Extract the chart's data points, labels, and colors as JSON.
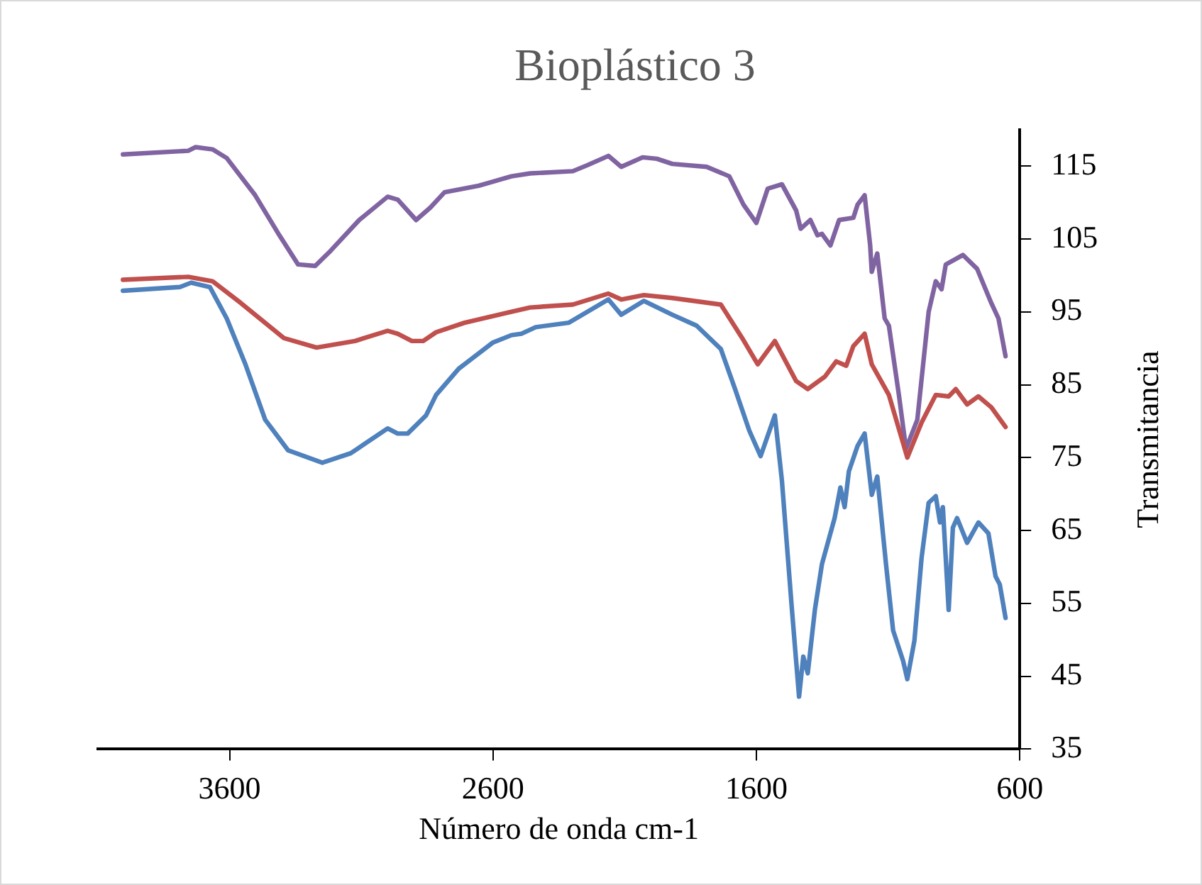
{
  "chart_data": {
    "type": "line",
    "title": "Bioplástico 3",
    "xlabel": "Número de onda cm-1",
    "ylabel": "Transmitancia",
    "xlim": [
      4100,
      600
    ],
    "xticks": [
      3600,
      2600,
      1600,
      600
    ],
    "ylim": [
      35,
      120
    ],
    "yticks": [
      35,
      45,
      55,
      65,
      75,
      85,
      95,
      105,
      115
    ],
    "grid": false,
    "legend": false,
    "marker": "none",
    "line_style": "solid",
    "series": [
      {
        "color": "#4f81bd",
        "x": [
          4005,
          3789,
          3746,
          3675,
          3611,
          3540,
          3465,
          3378,
          3248,
          3140,
          3000,
          2962,
          2924,
          2854,
          2816,
          2730,
          2600,
          2530,
          2492,
          2438,
          2313,
          2162,
          2113,
          2027,
          1919,
          1827,
          1735,
          1681,
          1627,
          1584,
          1530,
          1503,
          1465,
          1438,
          1422,
          1405,
          1378,
          1351,
          1303,
          1281,
          1265,
          1249,
          1216,
          1189,
          1162,
          1141,
          1108,
          1081,
          1043,
          1027,
          1000,
          973,
          946,
          919,
          903,
          892,
          870,
          854,
          838,
          800,
          757,
          719,
          692,
          676,
          654
        ],
        "values": [
          97.9,
          98.4,
          99.0,
          98.4,
          94.1,
          87.8,
          80.2,
          76.0,
          74.3,
          75.6,
          79.0,
          78.3,
          78.3,
          80.8,
          83.6,
          87.2,
          90.8,
          91.8,
          92.0,
          92.9,
          93.5,
          96.7,
          94.6,
          96.5,
          94.6,
          93.1,
          89.9,
          84.4,
          78.7,
          75.2,
          80.8,
          71.8,
          54.1,
          42.2,
          47.7,
          45.4,
          54.1,
          60.4,
          66.7,
          70.9,
          68.2,
          73.1,
          76.6,
          78.3,
          69.9,
          72.4,
          60.4,
          51.3,
          47.1,
          44.6,
          49.9,
          61.2,
          68.8,
          69.7,
          66.1,
          68.2,
          54.1,
          65.4,
          66.7,
          63.3,
          66.1,
          64.6,
          58.7,
          57.6,
          53.0
        ]
      },
      {
        "color": "#c0504d",
        "x": [
          4005,
          3757,
          3665,
          3557,
          3394,
          3270,
          3124,
          3000,
          2962,
          2908,
          2865,
          2816,
          2708,
          2530,
          2459,
          2297,
          2162,
          2113,
          2027,
          1919,
          1735,
          1654,
          1595,
          1530,
          1449,
          1405,
          1340,
          1297,
          1259,
          1232,
          1189,
          1162,
          1097,
          1027,
          973,
          919,
          870,
          843,
          800,
          757,
          708,
          654
        ],
        "values": [
          99.4,
          99.8,
          99.2,
          96.2,
          91.4,
          90.1,
          91.0,
          92.4,
          92.0,
          91.0,
          91.0,
          92.2,
          93.5,
          95.0,
          95.6,
          96.0,
          97.5,
          96.7,
          97.3,
          96.9,
          96.0,
          91.4,
          87.8,
          91.0,
          85.5,
          84.4,
          86.1,
          88.2,
          87.6,
          90.3,
          92.0,
          87.8,
          83.6,
          75.0,
          79.8,
          83.6,
          83.4,
          84.4,
          82.3,
          83.4,
          81.9,
          79.2
        ]
      },
      {
        "color": "#8064a2",
        "x": [
          4005,
          3757,
          3729,
          3665,
          3611,
          3503,
          3411,
          3340,
          3275,
          3216,
          3108,
          3000,
          2962,
          2892,
          2838,
          2784,
          2654,
          2530,
          2459,
          2297,
          2243,
          2162,
          2113,
          2032,
          1978,
          1919,
          1789,
          1703,
          1649,
          1600,
          1557,
          1503,
          1449,
          1432,
          1395,
          1368,
          1351,
          1319,
          1286,
          1232,
          1216,
          1189,
          1168,
          1162,
          1141,
          1113,
          1097,
          1059,
          1032,
          989,
          946,
          919,
          897,
          881,
          816,
          762,
          708,
          681,
          654
        ],
        "values": [
          116.6,
          117.1,
          117.6,
          117.3,
          116.1,
          111.0,
          105.5,
          101.5,
          101.3,
          103.4,
          107.6,
          110.8,
          110.4,
          107.6,
          109.3,
          111.4,
          112.3,
          113.6,
          114.0,
          114.3,
          115.1,
          116.4,
          114.9,
          116.2,
          116.0,
          115.3,
          114.9,
          113.6,
          109.7,
          107.2,
          111.9,
          112.5,
          108.9,
          106.4,
          107.6,
          105.5,
          105.7,
          104.1,
          107.6,
          107.9,
          109.7,
          111.0,
          104.1,
          100.5,
          103.0,
          94.1,
          93.1,
          83.6,
          76.2,
          80.2,
          95.0,
          99.2,
          98.1,
          101.5,
          102.8,
          100.9,
          96.2,
          94.1,
          88.9
        ]
      }
    ]
  }
}
